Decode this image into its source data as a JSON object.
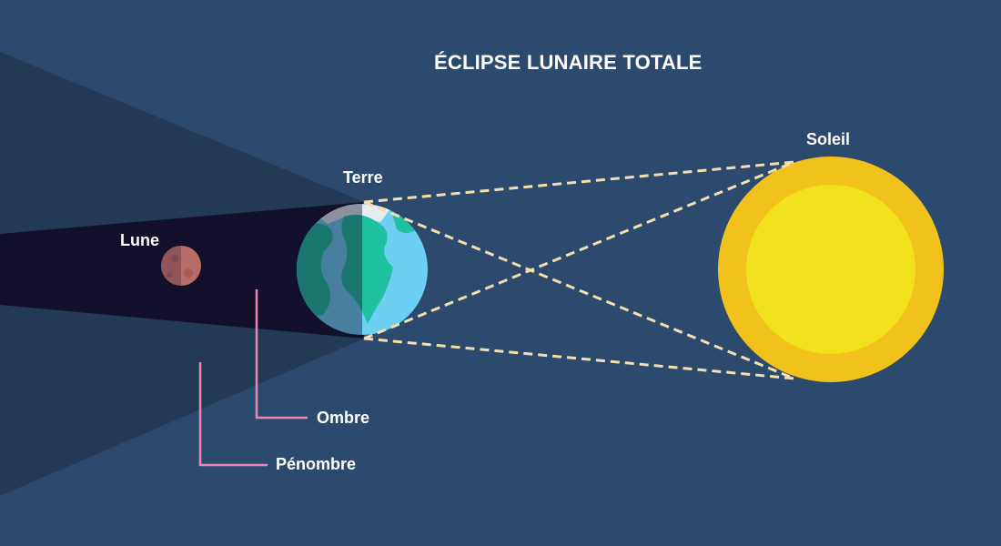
{
  "title": "ÉCLIPSE LUNAIRE TOTALE",
  "labels": {
    "sun": "Soleil",
    "earth": "Terre",
    "moon": "Lune",
    "umbra": "Ombre",
    "penumbra": "Pénombre"
  },
  "colors": {
    "background": "#2c4a6e",
    "penumbra": "#233a57",
    "umbra": "#13102c",
    "sun_outer": "#f1c21b",
    "sun_inner": "#f1e21d",
    "earth_ocean": "#6dcff1",
    "earth_land": "#20c1a2",
    "moon": "#b86c66",
    "rays": "#f4deb0",
    "leader_lines": "#e887b4"
  }
}
